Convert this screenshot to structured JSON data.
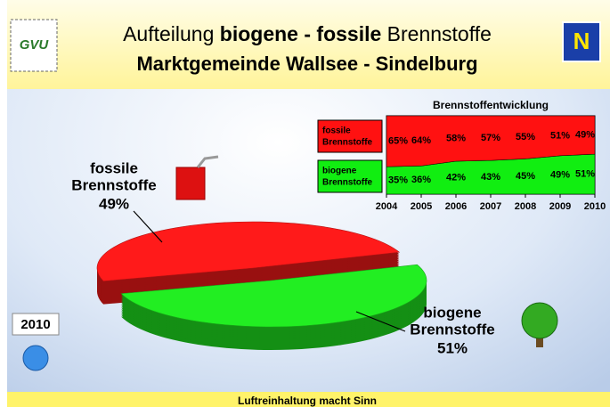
{
  "header": {
    "logo_left": "GVU",
    "logo_right": "N",
    "title": [
      "Aufteilung ",
      "biogene - fossile",
      " Brennstoffe"
    ],
    "subtitle": "Marktgemeinde Wallsee - Sindelburg"
  },
  "footer": "Luftreinhaltung macht Sinn",
  "chart_data": [
    {
      "type": "pie",
      "annotation": "2010",
      "categories": [
        "fossile\nBrennstoffe",
        "biogene\nBrennstoffe"
      ],
      "values": [
        49,
        51
      ],
      "value_labels": [
        "49%",
        "51%"
      ],
      "colors": [
        "#ff1a1a",
        "#22ee22"
      ]
    },
    {
      "type": "area",
      "stacked": true,
      "title": "Brennstoffentwicklung",
      "x": [
        2004,
        2005,
        2006,
        2007,
        2008,
        2009,
        2010
      ],
      "xlim": [
        2004,
        2010
      ],
      "xticks": [
        2004,
        2005,
        2006,
        2007,
        2008,
        2009,
        2010
      ],
      "ylim": [
        0,
        100
      ],
      "series": [
        {
          "name": "biogene\nBrennstoffe",
          "color": "#11ee11",
          "values": [
            35,
            36,
            42,
            43,
            45,
            49,
            51
          ],
          "value_labels": [
            "35%",
            "36%",
            "42%",
            "43%",
            "45%",
            "49%",
            "51%"
          ]
        },
        {
          "name": "fossile\nBrennstoffe",
          "color": "#ff1111",
          "values": [
            65,
            64,
            58,
            57,
            55,
            51,
            49
          ],
          "value_labels": [
            "65%",
            "64%",
            "58%",
            "57%",
            "55%",
            "51%",
            "49%"
          ]
        }
      ]
    }
  ]
}
